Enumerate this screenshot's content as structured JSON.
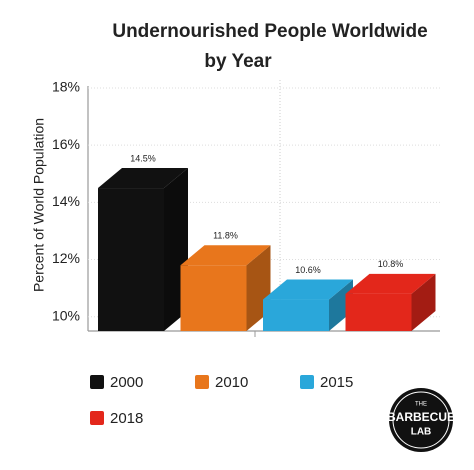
{
  "chart_data": {
    "type": "bar3d",
    "title": [
      "Undernourished People Worldwide",
      "by Year"
    ],
    "y_label": "Percent of World Population",
    "categories": [
      "2000",
      "2010",
      "2015",
      "2018"
    ],
    "values": [
      14.5,
      11.8,
      10.6,
      10.8
    ],
    "value_labels": [
      "14.5%",
      "11.8%",
      "10.6%",
      "10.8%"
    ],
    "colors": [
      "#111111",
      "#e8761c",
      "#2aa7da",
      "#e3271b"
    ],
    "ylim": [
      9.5,
      18
    ],
    "yticks": [
      {
        "value": 10,
        "label": "10%"
      },
      {
        "value": 12,
        "label": "12%"
      },
      {
        "value": 14,
        "label": "14%"
      },
      {
        "value": 16,
        "label": "16%"
      },
      {
        "value": 18,
        "label": "18%"
      }
    ],
    "grid": true
  },
  "logo": [
    "THE",
    "BARBECUE",
    "LAB"
  ]
}
